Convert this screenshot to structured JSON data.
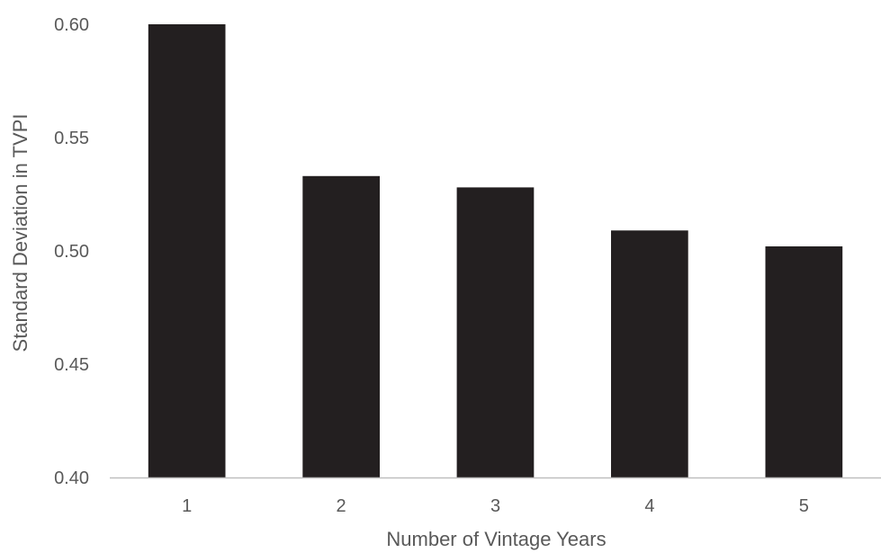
{
  "chart_data": {
    "type": "bar",
    "title": "",
    "xlabel": "Number of Vintage Years",
    "ylabel": "Standard Deviation in TVPI",
    "categories": [
      "1",
      "2",
      "3",
      "4",
      "5"
    ],
    "values": [
      0.6,
      0.533,
      0.528,
      0.509,
      0.502
    ],
    "ylim": [
      0.4,
      0.6
    ],
    "yticks": [
      0.4,
      0.45,
      0.5,
      0.55,
      0.6
    ],
    "ytick_labels": [
      "0.40",
      "0.45",
      "0.50",
      "0.55",
      "0.60"
    ],
    "grid": false,
    "legend": "none",
    "colors": {
      "bar": "#231f20",
      "axis": "#bfbfbf",
      "text": "#595959"
    }
  }
}
